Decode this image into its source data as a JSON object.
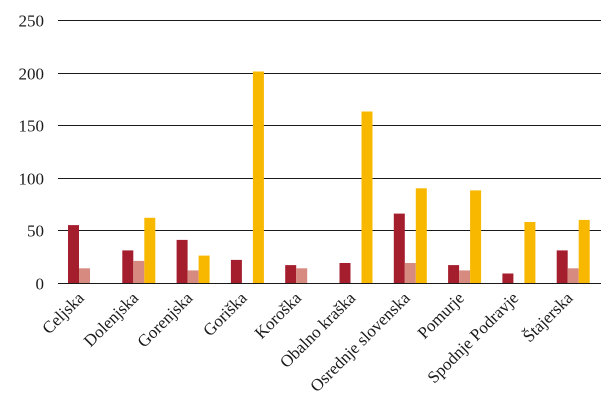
{
  "chart_data": {
    "type": "bar",
    "categories": [
      "Celjska",
      "Dolenjska",
      "Gorenjska",
      "Goriška",
      "Koroška",
      "Obalno kraška",
      "Osrednje slovenska",
      "Pomurje",
      "Spodnje Podravje",
      "Štajerska"
    ],
    "series": [
      {
        "color": "#a51e2e",
        "values": [
          55,
          31,
          41,
          22,
          17,
          19,
          66,
          17,
          9,
          31
        ]
      },
      {
        "color": "#d78a80",
        "values": [
          14,
          21,
          12,
          0,
          14,
          0,
          19,
          12,
          0,
          14
        ]
      },
      {
        "color": "#f8b800",
        "values": [
          0,
          62,
          26,
          201,
          0,
          163,
          90,
          88,
          58,
          60
        ]
      }
    ],
    "yticks": [
      "0",
      "50",
      "100",
      "150",
      "200",
      "250"
    ],
    "ylim": [
      0,
      250
    ],
    "grid": true,
    "xlabel": "",
    "ylabel": "",
    "title": ""
  }
}
